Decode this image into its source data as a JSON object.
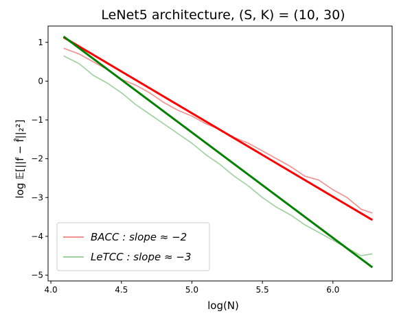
{
  "chart_data": {
    "type": "line",
    "title": "LeNet5 architecture, (S, K) = (10, 30)",
    "xlabel": "log(N)",
    "ylabel": "log 𝔼[||f − f̂||₂²]",
    "xlim": [
      3.98,
      6.42
    ],
    "ylim": [
      -5.15,
      1.42
    ],
    "xticks": [
      4.0,
      4.5,
      5.0,
      5.5,
      6.0
    ],
    "xtick_labels": [
      "4.0",
      "4.5",
      "5.0",
      "5.5",
      "6.0"
    ],
    "yticks": [
      1,
      0,
      -1,
      -2,
      -3,
      -4,
      -5
    ],
    "ytick_labels": [
      "1",
      "0",
      "−1",
      "−2",
      "−3",
      "−4",
      "−5"
    ],
    "grid": false,
    "legend_position": "lower-left",
    "colors": {
      "bacc_noisy": "#f08080",
      "letcc_noisy": "#90c890",
      "bacc_fit": "#ff0000",
      "letcc_fit": "#008000"
    },
    "series": [
      {
        "name": "BACC : slope ≈ −2",
        "kind": "empirical",
        "color": "#f08080",
        "x": [
          4.09,
          4.2,
          4.3,
          4.4,
          4.5,
          4.6,
          4.7,
          4.8,
          4.9,
          5.0,
          5.1,
          5.2,
          5.3,
          5.4,
          5.5,
          5.6,
          5.7,
          5.8,
          5.9,
          6.0,
          6.1,
          6.2,
          6.28
        ],
        "y": [
          0.85,
          0.7,
          0.5,
          0.3,
          0.05,
          -0.1,
          -0.3,
          -0.55,
          -0.75,
          -0.9,
          -1.1,
          -1.25,
          -1.45,
          -1.6,
          -1.8,
          -2.0,
          -2.2,
          -2.45,
          -2.55,
          -2.8,
          -3.0,
          -3.3,
          -3.4
        ]
      },
      {
        "name": "LeTCC : slope ≈ −3",
        "kind": "empirical",
        "color": "#90c890",
        "x": [
          4.09,
          4.2,
          4.3,
          4.4,
          4.5,
          4.6,
          4.7,
          4.8,
          4.9,
          5.0,
          5.1,
          5.2,
          5.3,
          5.4,
          5.5,
          5.6,
          5.7,
          5.8,
          5.9,
          6.0,
          6.1,
          6.2,
          6.28
        ],
        "y": [
          0.65,
          0.45,
          0.15,
          -0.05,
          -0.3,
          -0.6,
          -0.85,
          -1.1,
          -1.35,
          -1.6,
          -1.9,
          -2.15,
          -2.45,
          -2.7,
          -3.0,
          -3.25,
          -3.45,
          -3.7,
          -3.9,
          -4.1,
          -4.3,
          -4.5,
          -4.45
        ]
      },
      {
        "name": "",
        "kind": "fit",
        "color": "#ff0000",
        "x": [
          4.09,
          6.28
        ],
        "y": [
          1.13,
          -3.58
        ]
      },
      {
        "name": "",
        "kind": "fit",
        "color": "#008000",
        "x": [
          4.09,
          6.28
        ],
        "y": [
          1.15,
          -4.8
        ]
      }
    ]
  }
}
